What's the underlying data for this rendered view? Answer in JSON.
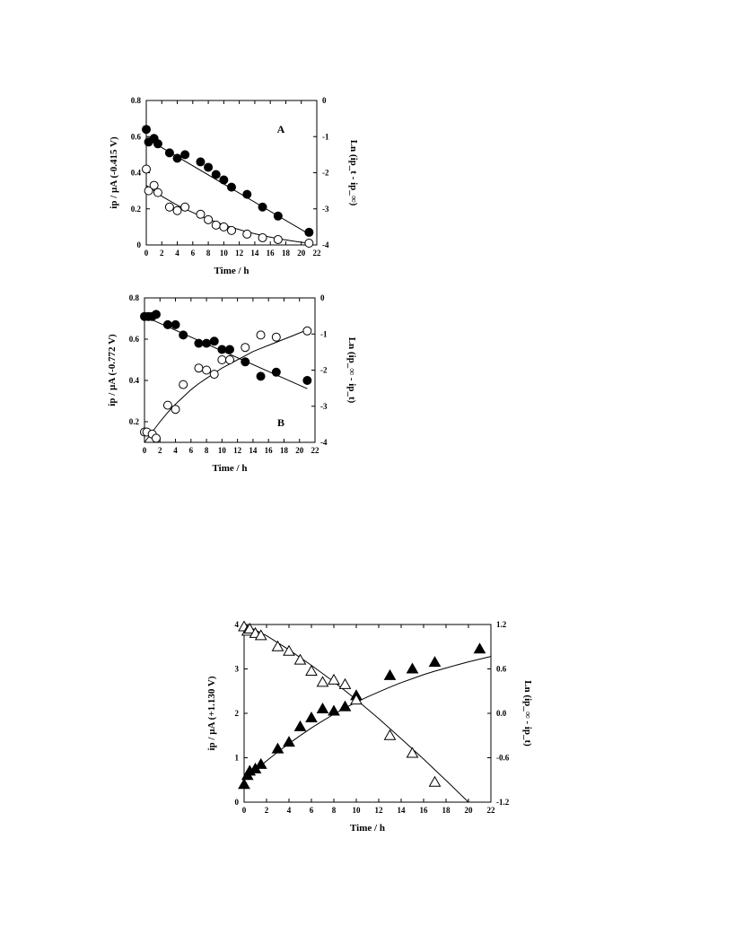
{
  "chart_data": [
    {
      "type": "scatter",
      "panel_label": "A",
      "xlabel": "Time / h",
      "ylabel": "ip / µA (-0.415 V)",
      "y2label": "Ln (ip_t - ip_∞)",
      "xlim": [
        0,
        22
      ],
      "ylim": [
        0,
        0.8
      ],
      "y2lim": [
        -4,
        0
      ],
      "x_ticks": [
        0,
        2,
        4,
        6,
        8,
        10,
        12,
        14,
        16,
        18,
        20,
        22
      ],
      "y_ticks": [
        0,
        0.2,
        0.4,
        0.6,
        0.8
      ],
      "y2_ticks": [
        0,
        -1,
        -2,
        -3,
        -4
      ],
      "x_tick_labels": [
        "0",
        "2",
        "4",
        "6",
        "8",
        "10",
        "12",
        "14",
        "16",
        "18",
        "20",
        "22"
      ],
      "y_tick_labels": [
        "0",
        "0.2",
        "0.4",
        "0.6",
        "0.8"
      ],
      "y2_tick_labels": [
        "0",
        "-1",
        "-2",
        "-3",
        "-4"
      ],
      "series": [
        {
          "marker": "filled-circle",
          "axis": "left",
          "x": [
            0,
            0.3,
            1,
            1.5,
            3,
            4,
            5,
            7,
            8,
            9,
            10,
            11,
            13,
            15,
            17,
            21
          ],
          "y": [
            0.64,
            0.57,
            0.59,
            0.56,
            0.51,
            0.48,
            0.5,
            0.46,
            0.43,
            0.39,
            0.36,
            0.32,
            0.28,
            0.21,
            0.16,
            0.07
          ],
          "fit": {
            "x": [
              0,
              21
            ],
            "y": [
              0.59,
              0.06
            ]
          }
        },
        {
          "marker": "open-circle",
          "axis": "left",
          "x": [
            0,
            0.3,
            1,
            1.5,
            3,
            4,
            5,
            7,
            8,
            9,
            10,
            11,
            13,
            15,
            17,
            21
          ],
          "y": [
            0.42,
            0.3,
            0.33,
            0.29,
            0.21,
            0.19,
            0.21,
            0.17,
            0.14,
            0.11,
            0.1,
            0.08,
            0.06,
            0.04,
            0.03,
            0.01
          ],
          "fit": {
            "x": [
              0,
              1,
              2,
              3,
              4,
              5,
              6,
              7,
              8,
              9,
              10,
              11,
              12,
              13,
              14,
              15,
              16,
              17,
              18,
              19,
              20,
              21
            ],
            "y": [
              0.33,
              0.3,
              0.27,
              0.245,
              0.22,
              0.2,
              0.18,
              0.16,
              0.143,
              0.127,
              0.112,
              0.098,
              0.085,
              0.073,
              0.062,
              0.052,
              0.043,
              0.035,
              0.028,
              0.021,
              0.015,
              0.01
            ]
          }
        }
      ]
    },
    {
      "type": "scatter",
      "panel_label": "B",
      "xlabel": "Time / h",
      "ylabel": "ip / µA (-0.772 V)",
      "y2label": "Ln (ip_∞ - ip_t)",
      "xlim": [
        0,
        22
      ],
      "ylim": [
        0.1,
        0.8
      ],
      "y2lim": [
        -4,
        0
      ],
      "x_ticks": [
        0,
        2,
        4,
        6,
        8,
        10,
        12,
        14,
        16,
        18,
        20,
        22
      ],
      "y_ticks": [
        0.2,
        0.4,
        0.6,
        0.8
      ],
      "y2_ticks": [
        0,
        -1,
        -2,
        -3,
        -4
      ],
      "x_tick_labels": [
        "0",
        "2",
        "4",
        "6",
        "8",
        "10",
        "12",
        "14",
        "16",
        "18",
        "20",
        "22"
      ],
      "y_tick_labels": [
        "0.2",
        "0.4",
        "0.6",
        "0.8"
      ],
      "y2_tick_labels": [
        "0",
        "-1",
        "-2",
        "-3",
        "-4"
      ],
      "series": [
        {
          "marker": "filled-circle",
          "axis": "left",
          "x": [
            0,
            0.5,
            1,
            1.5,
            3,
            4,
            5,
            7,
            8,
            9,
            10,
            11,
            13,
            15,
            17,
            21
          ],
          "y": [
            0.71,
            0.71,
            0.71,
            0.72,
            0.67,
            0.67,
            0.62,
            0.58,
            0.58,
            0.59,
            0.55,
            0.55,
            0.49,
            0.42,
            0.44,
            0.4
          ],
          "fit": {
            "x": [
              0,
              21
            ],
            "y": [
              0.71,
              0.36
            ]
          }
        },
        {
          "marker": "open-circle",
          "axis": "left",
          "x": [
            0,
            0.3,
            1,
            1.5,
            3,
            4,
            5,
            7,
            8,
            9,
            10,
            11,
            13,
            15,
            17,
            21
          ],
          "y": [
            0.15,
            0.15,
            0.14,
            0.12,
            0.28,
            0.26,
            0.38,
            0.46,
            0.45,
            0.43,
            0.5,
            0.5,
            0.56,
            0.62,
            0.61,
            0.64
          ],
          "fit": {
            "x": [
              0,
              1,
              2,
              3,
              4,
              5,
              6,
              7,
              8,
              9,
              10,
              11,
              12,
              13,
              14,
              15,
              16,
              17,
              18,
              19,
              20,
              21
            ],
            "y": [
              0.1,
              0.15,
              0.2,
              0.245,
              0.285,
              0.32,
              0.355,
              0.385,
              0.41,
              0.435,
              0.46,
              0.48,
              0.5,
              0.52,
              0.54,
              0.555,
              0.57,
              0.585,
              0.6,
              0.615,
              0.63,
              0.645
            ]
          }
        }
      ]
    },
    {
      "type": "scatter",
      "panel_label": "",
      "xlabel": "Time / h",
      "ylabel": "ip / µA (+1.130 V)",
      "y2label": "Ln (ip_∞ - ip_t)",
      "xlim": [
        0,
        22
      ],
      "ylim": [
        0,
        4
      ],
      "y2lim": [
        -1.2,
        1.2
      ],
      "x_ticks": [
        0,
        2,
        4,
        6,
        8,
        10,
        12,
        14,
        16,
        18,
        20,
        22
      ],
      "y_ticks": [
        0,
        1,
        2,
        3,
        4
      ],
      "y2_ticks": [
        1.2,
        0.6,
        0,
        -0.6,
        -1.2
      ],
      "x_tick_labels": [
        "0",
        "2",
        "4",
        "6",
        "8",
        "10",
        "12",
        "14",
        "16",
        "18",
        "20",
        "22"
      ],
      "y_tick_labels": [
        "0",
        "1",
        "2",
        "3",
        "4"
      ],
      "y2_tick_labels": [
        "1.2",
        "0.6",
        "0.0",
        "-0.6",
        "-1.2"
      ],
      "series": [
        {
          "marker": "filled-triangle",
          "axis": "left",
          "x": [
            0,
            0.3,
            0.5,
            1,
            1.5,
            3,
            4,
            5,
            6,
            7,
            8,
            9,
            10,
            13,
            15,
            17,
            21
          ],
          "y": [
            0.4,
            0.6,
            0.7,
            0.75,
            0.85,
            1.2,
            1.35,
            1.7,
            1.9,
            2.1,
            2.05,
            2.15,
            2.4,
            2.85,
            3.0,
            3.15,
            3.45
          ],
          "fit": {
            "x": [
              0,
              1,
              2,
              3,
              4,
              5,
              6,
              7,
              8,
              9,
              10,
              11,
              12,
              13,
              14,
              15,
              16,
              17,
              18,
              19,
              20,
              21,
              22
            ],
            "y": [
              0.5,
              0.72,
              0.93,
              1.13,
              1.32,
              1.5,
              1.67,
              1.83,
              1.98,
              2.12,
              2.25,
              2.37,
              2.48,
              2.59,
              2.69,
              2.78,
              2.87,
              2.95,
              3.02,
              3.09,
              3.16,
              3.22,
              3.28
            ]
          }
        },
        {
          "marker": "open-triangle",
          "axis": "left",
          "x": [
            0,
            0.3,
            0.5,
            1,
            1.5,
            3,
            4,
            5,
            6,
            7,
            8,
            9,
            10,
            13,
            15,
            17
          ],
          "y": [
            3.95,
            3.85,
            3.9,
            3.8,
            3.75,
            3.5,
            3.4,
            3.2,
            2.95,
            2.7,
            2.75,
            2.65,
            2.3,
            1.5,
            1.1,
            0.45
          ],
          "fit": {
            "x": [
              0,
              2,
              4,
              6,
              8,
              10,
              12,
              14,
              16,
              18,
              20,
              21
            ],
            "y": [
              4.05,
              3.75,
              3.43,
              3.08,
              2.71,
              2.31,
              1.88,
              1.43,
              0.97,
              0.49,
              0.0,
              -0.25
            ]
          }
        }
      ]
    }
  ]
}
